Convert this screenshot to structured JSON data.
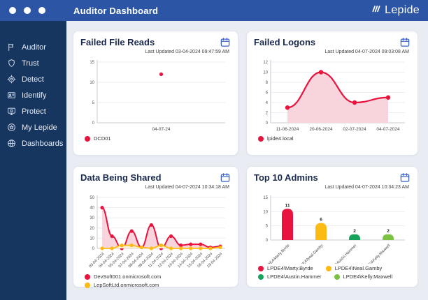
{
  "theme": {
    "topbar_bg": "#2d55a6",
    "sidebar_bg": "#16365f",
    "main_bg": "#e9edf3",
    "accent_blue": "#3a63c8",
    "red": "#e8143e",
    "pink_fill": "#f8d4dc",
    "yellow": "#fdba12",
    "green": "#17a35b",
    "light_green": "#7cc242"
  },
  "topbar": {
    "title": "Auditor Dashboard",
    "brand": "Lepide"
  },
  "sidebar": {
    "items": [
      {
        "label": "Auditor",
        "icon": "flag-icon"
      },
      {
        "label": "Trust",
        "icon": "shield-icon"
      },
      {
        "label": "Detect",
        "icon": "target-icon"
      },
      {
        "label": "Identify",
        "icon": "idcard-icon"
      },
      {
        "label": "Protect",
        "icon": "monitor-lock-icon"
      },
      {
        "label": "My Lepide",
        "icon": "star-circle-icon"
      },
      {
        "label": "Dashboards",
        "icon": "globe-icon"
      }
    ]
  },
  "chart_data": [
    {
      "type": "scatter",
      "title": "Failed File Reads",
      "last_updated": "Last Updated 03-04-2024 09:47:59 AM",
      "categories": [
        "04-07-24"
      ],
      "series": [
        {
          "name": "DCD01",
          "color": "#e8143e",
          "marker": 2.6,
          "values": [
            12
          ]
        }
      ],
      "ylim": [
        0,
        15
      ],
      "yticks": [
        0,
        5,
        10,
        15
      ],
      "grid": true,
      "legend_position": "bottom"
    },
    {
      "type": "area",
      "title": "Failed Logons",
      "last_updated": "Last Updated 04-07-2024 09:03:08 AM",
      "categories": [
        "11-06-2024",
        "20-06-2024",
        "02-07-2024",
        "04-07-2024"
      ],
      "series": [
        {
          "name": "lpide4.local",
          "color": "#e8143e",
          "fill": "#f8d4dc",
          "width": 2.2,
          "marker": 3.2,
          "values": [
            3,
            10,
            4,
            5
          ]
        }
      ],
      "ylim": [
        0,
        12
      ],
      "yticks": [
        0,
        2,
        4,
        6,
        8,
        10,
        12
      ],
      "grid": true,
      "legend_position": "bottom"
    },
    {
      "type": "area",
      "title": "Data Being Shared",
      "last_updated": "Last Updated 04-07-2024 10:34:18 AM",
      "categories": [
        "03-04-2024",
        "04-04-2024",
        "05-04-2024",
        "07-04-2024",
        "08-04-2024",
        "09-04-2024",
        "11-04-2024",
        "12-04-2024",
        "13-04-2024",
        "14-04-2024",
        "15-04-2024",
        "18-04-2024",
        "19-04-2024"
      ],
      "rotate_labels": true,
      "series": [
        {
          "name": "DevSoft001.onmicrosoft.com",
          "color": "#e8143e",
          "fill": "#f8d4dc",
          "width": 2,
          "marker": 2.6,
          "values": [
            40,
            12,
            0,
            17,
            1,
            23,
            0,
            12,
            3,
            4,
            4,
            1,
            2
          ]
        },
        {
          "name": "LepSoftLtd.onmicrosoft.com",
          "color": "#fdba12",
          "fill": "#fdf0d0",
          "width": 1.8,
          "marker": 2.6,
          "values": [
            0,
            0,
            3,
            3,
            1,
            0,
            3,
            0,
            0,
            0,
            0,
            0,
            1
          ]
        }
      ],
      "ylim": [
        0,
        50
      ],
      "yticks": [
        0,
        10,
        20,
        30,
        40,
        50
      ],
      "grid": true,
      "legend_position": "bottom"
    },
    {
      "type": "bar",
      "title": "Top 10 Admins",
      "last_updated": "Last Updated 04-07-2024 10:34:23 AM",
      "categories": [
        "LPDE4\\Marty.Byrde",
        "LPDE4\\Neal.Gamby",
        "LPDE4\\Austin.Hammer",
        "LPDE4\\Kelly.Maxwell"
      ],
      "rotate_labels": true,
      "show_values": true,
      "series": [
        {
          "name": "admins",
          "colors": [
            "#e8143e",
            "#fdba12",
            "#17a35b",
            "#7cc242"
          ],
          "values": [
            11,
            6,
            2,
            2
          ]
        }
      ],
      "legend": [
        {
          "label": "LPDE4\\Marty.Byrde",
          "color": "#e8143e"
        },
        {
          "label": "LPDE4\\Neal.Gamby",
          "color": "#fdba12"
        },
        {
          "label": "LPDE4\\Austin.Hammer",
          "color": "#17a35b"
        },
        {
          "label": "LPDE4\\Kelly.Maxwell",
          "color": "#7cc242"
        }
      ],
      "ylim": [
        0,
        15
      ],
      "yticks": [
        0,
        5,
        10,
        15
      ],
      "grid": true,
      "legend_position": "bottom"
    }
  ]
}
